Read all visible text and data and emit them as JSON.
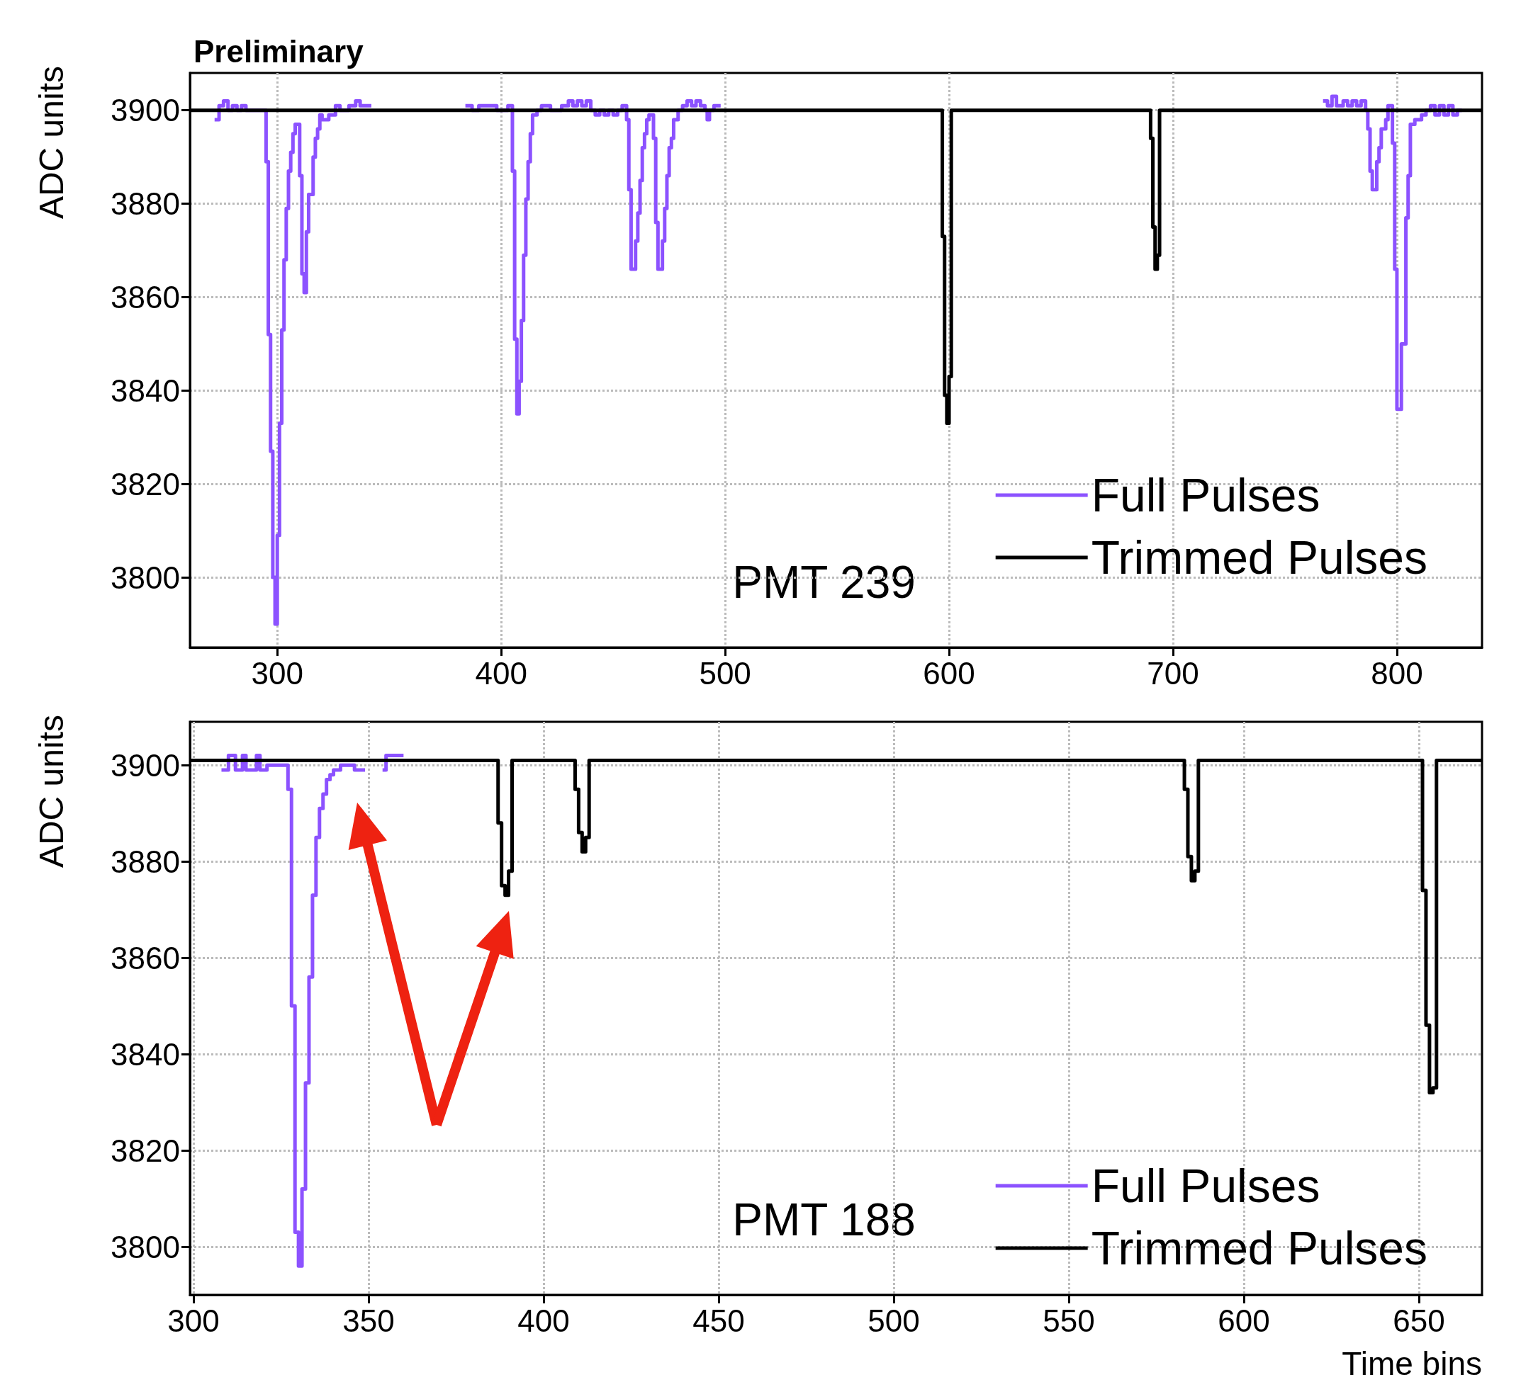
{
  "chart_data": [
    {
      "type": "step",
      "title": "Preliminary",
      "ylabel": "ADC units",
      "annotations": [
        "PMT 239"
      ],
      "xlim": [
        261,
        838
      ],
      "xticks": [
        300,
        400,
        500,
        600,
        700,
        800
      ],
      "ylim": [
        3785,
        3908
      ],
      "yticks": [
        3800,
        3820,
        3840,
        3860,
        3880,
        3900
      ],
      "grid": true,
      "legend": "bottom right",
      "series": [
        {
          "name": "Full Pulses",
          "color": "#8c52ff",
          "x": [
            272,
            274,
            276,
            278,
            280,
            282,
            284,
            286,
            295,
            296,
            297,
            298,
            299,
            300,
            301,
            302,
            303,
            304,
            305,
            306,
            307,
            308,
            310,
            311,
            312,
            313,
            314,
            316,
            317,
            318,
            319,
            320,
            323,
            326,
            328,
            332,
            335,
            337,
            340,
            341,
            342,
            384,
            387,
            390,
            398,
            403,
            405,
            406,
            407,
            408,
            409,
            410,
            411,
            412,
            413,
            414,
            416,
            418,
            422,
            427,
            430,
            432,
            434,
            436,
            438,
            440,
            442,
            444,
            446,
            448,
            450,
            452,
            454,
            456,
            457,
            458,
            460,
            461,
            462,
            463,
            464,
            465,
            466,
            468,
            469,
            470,
            472,
            473,
            474,
            475,
            476,
            477,
            479,
            481,
            483,
            485,
            487,
            489,
            491,
            492,
            493,
            495,
            497,
            498,
            767,
            769,
            771,
            773,
            776,
            778,
            780,
            782,
            784,
            786,
            787,
            788,
            789,
            791,
            792,
            793,
            795,
            796,
            798,
            799,
            800,
            802,
            804,
            805,
            806,
            808,
            811,
            813,
            815,
            817,
            819,
            821,
            823,
            825,
            827,
            829
          ],
          "values": [
            3898,
            3901,
            3902,
            3900,
            3901,
            3900,
            3901,
            3900,
            3889,
            3852,
            3827,
            3800,
            3790,
            3809,
            3833,
            3853,
            3868,
            3879,
            3887,
            3891,
            3895,
            3897,
            3886,
            3865,
            3861,
            3874,
            3882,
            3890,
            3894,
            3896,
            3899,
            3898,
            3899,
            3901,
            3900,
            3901,
            3902,
            3901,
            3901,
            3901,
            null,
            3901,
            3900,
            3901,
            3900,
            3901,
            3887,
            3851,
            3835,
            3842,
            3855,
            3869,
            3881,
            3889,
            3895,
            3899,
            3900,
            3901,
            3900,
            3901,
            3902,
            3901,
            3902,
            3901,
            3902,
            3900,
            3899,
            3900,
            3899,
            3900,
            3899,
            3900,
            3901,
            3898,
            3883,
            3866,
            3872,
            3878,
            3885,
            3892,
            3895,
            3898,
            3899,
            3894,
            3876,
            3866,
            3872,
            3879,
            3886,
            3892,
            3894,
            3898,
            3900,
            3901,
            3902,
            3901,
            3902,
            3901,
            3900,
            3898,
            3900,
            3901,
            3901,
            null,
            3902,
            3901,
            3903,
            3901,
            3902,
            3901,
            3902,
            3901,
            3902,
            3900,
            3896,
            3887,
            3883,
            3889,
            3892,
            3896,
            3898,
            3901,
            3893,
            3866,
            3836,
            3850,
            3877,
            3886,
            3897,
            3898,
            3899,
            3900,
            3901,
            3899,
            3901,
            3899,
            3901,
            3899,
            3900,
            3900
          ]
        },
        {
          "name": "Trimmed Pulses",
          "color": "#000000",
          "x": [
            261,
            597,
            598,
            599,
            600,
            601,
            690,
            691,
            692,
            693,
            694,
            838
          ],
          "values": [
            3900,
            3873,
            3839,
            3833,
            3843,
            3900,
            3894,
            3875,
            3866,
            3869,
            3900,
            3900
          ]
        }
      ]
    },
    {
      "type": "step",
      "xlabel": "Time bins",
      "ylabel": "ADC units",
      "annotations": [
        "PMT 188"
      ],
      "xlim": [
        299,
        668
      ],
      "xticks": [
        300,
        350,
        400,
        450,
        500,
        550,
        600,
        650
      ],
      "ylim": [
        3790,
        3909
      ],
      "yticks": [
        3800,
        3820,
        3840,
        3860,
        3880,
        3900
      ],
      "grid": true,
      "legend": "bottom right",
      "series": [
        {
          "name": "Full Pulses",
          "color": "#8c52ff",
          "x": [
            308,
            310,
            312,
            314,
            315,
            318,
            319,
            321,
            327,
            328,
            329,
            330,
            331,
            332,
            333,
            334,
            335,
            336,
            337,
            338,
            339,
            340,
            342,
            346,
            348,
            349,
            354,
            355,
            360
          ],
          "values": [
            3899,
            3902,
            3899,
            3902,
            3899,
            3902,
            3899,
            3900,
            3895,
            3850,
            3803,
            3796,
            3812,
            3834,
            3856,
            3873,
            3885,
            3891,
            3894,
            3897,
            3898,
            3899,
            3900,
            3899,
            3899,
            null,
            3899,
            3902,
            3902
          ]
        },
        {
          "name": "Trimmed Pulses",
          "color": "#000000",
          "x": [
            299,
            387,
            388,
            389,
            390,
            391,
            409,
            410,
            411,
            412,
            413,
            583,
            584,
            585,
            586,
            587,
            651,
            652,
            653,
            654,
            655,
            668
          ],
          "values": [
            3901,
            3888,
            3875,
            3873,
            3878,
            3901,
            3895,
            3886,
            3882,
            3885,
            3901,
            3895,
            3881,
            3876,
            3878,
            3901,
            3874,
            3846,
            3832,
            3833,
            3901,
            3901
          ]
        }
      ]
    }
  ]
}
